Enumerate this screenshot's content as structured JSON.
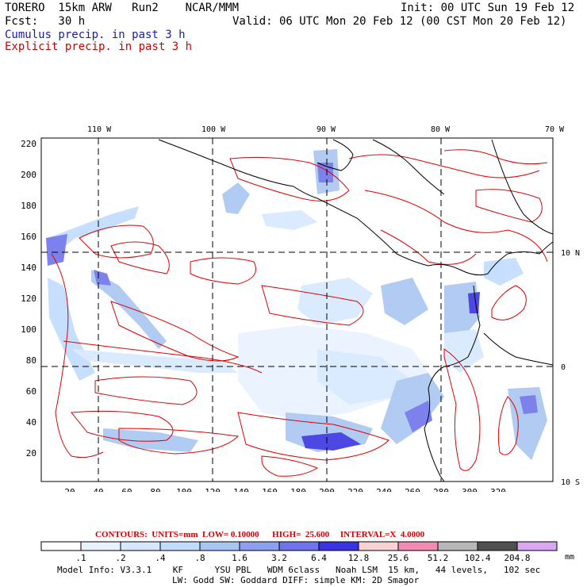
{
  "header": {
    "left_line1": "TORERO  15km ARW   Run2    NCAR/MMM",
    "left_line2": "Fcst:   30 h",
    "right_line1": "Init: 00 UTC Sun 19 Feb 12",
    "right_line2": "Valid: 06 UTC Mon 20 Feb 12 (00 CST Mon 20 Feb 12)",
    "legend_cumulus": "Cumulus precip. in past 3 h",
    "legend_explicit": "Explicit precip. in past 3 h"
  },
  "map": {
    "lon_labels": [
      "110 W",
      "100 W",
      "90 W",
      "80 W",
      "70 W"
    ],
    "lat_labels": [
      "10 N",
      "0",
      "10 S"
    ],
    "y_ticks": [
      "220",
      "200",
      "180",
      "160",
      "140",
      "120",
      "100",
      "80",
      "60",
      "40",
      "20"
    ],
    "x_ticks": [
      "20",
      "40",
      "60",
      "80",
      "100",
      "120",
      "140",
      "160",
      "180",
      "200",
      "220",
      "240",
      "260",
      "280",
      "300",
      "320"
    ],
    "colors": {
      "coast": "#000000",
      "contour": "#e00000",
      "grid": "#000000"
    }
  },
  "contour_info": {
    "text": "CONTOURS:  UNITS=mm  LOW= 0.10000      HIGH=  25.600     INTERVAL=X  4.0000"
  },
  "colorbar": {
    "labels": [
      ".1",
      ".2",
      ".4",
      ".8",
      "1.6",
      "3.2",
      "6.4",
      "12.8",
      "25.6",
      "51.2",
      "102.4",
      "204.8"
    ],
    "unit": "mm",
    "colors": [
      "#ffffff",
      "#e8f2ff",
      "#d6e8ff",
      "#c2dcff",
      "#a9c6f2",
      "#8f9ff0",
      "#6f74ea",
      "#3a34e0",
      "#f7d2d2",
      "#f08cb4",
      "#b8b8b8",
      "#505050",
      "#d8a8f0"
    ]
  },
  "footer": {
    "line1": "Model Info: V3.3.1    KF      YSU PBL   WDM 6class   Noah LSM  15 km,   44 levels,   102 sec",
    "line2": "LW: Godd SW: Goddard DIFF: simple KM: 2D Smagor"
  }
}
